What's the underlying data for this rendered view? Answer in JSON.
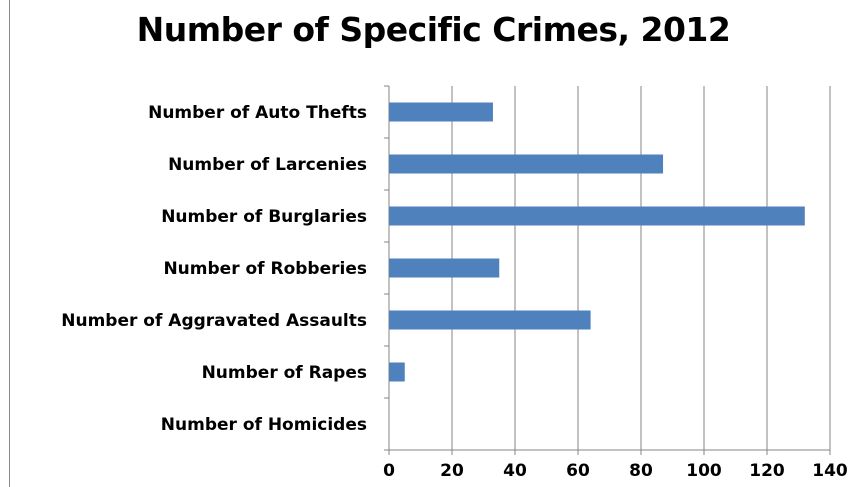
{
  "chart_data": {
    "type": "bar",
    "orientation": "horizontal",
    "title": "Number of Specific Crimes, 2012",
    "xlabel": "",
    "ylabel": "",
    "categories": [
      "Number of Auto Thefts",
      "Number of Larcenies",
      "Number of Burglaries",
      "Number of Robberies",
      "Number of Aggravated Assaults",
      "Number of Rapes",
      "Number of Homicides"
    ],
    "values": [
      33,
      87,
      132,
      35,
      64,
      5,
      0
    ],
    "xlim": [
      0,
      140
    ],
    "xticks": [
      "0",
      "20",
      "40",
      "60",
      "80",
      "100",
      "120",
      "140"
    ],
    "grid": true,
    "legend": "none",
    "bar_color": "#4f81bd",
    "grid_color": "#868686"
  }
}
